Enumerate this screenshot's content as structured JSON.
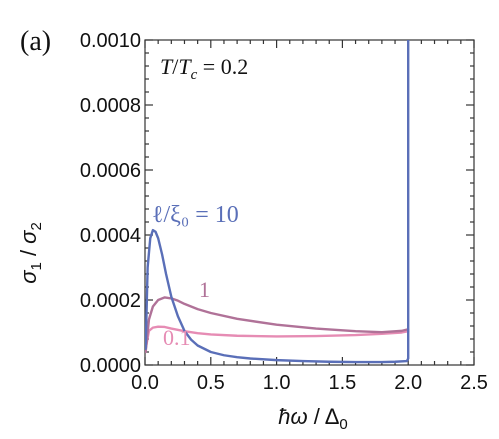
{
  "chart_data": {
    "type": "line",
    "panel_label": "(a)",
    "xlabel": "ħω / Δ₀",
    "ylabel": "σ₁ / σ₂",
    "xlim": [
      0.0,
      2.5
    ],
    "ylim": [
      0.0,
      0.001
    ],
    "x_ticks": [
      0.0,
      0.5,
      1.0,
      1.5,
      2.0,
      2.5
    ],
    "x_tick_labels": [
      "0.0",
      "0.5",
      "1.0",
      "1.5",
      "2.0",
      "2.5"
    ],
    "y_ticks": [
      0.0,
      0.0002,
      0.0004,
      0.0006,
      0.0008,
      0.001
    ],
    "y_tick_labels": [
      "0.0000",
      "0.0002",
      "0.0004",
      "0.0006",
      "0.0008",
      "0.0010"
    ],
    "annotation": "T/T_c = 0.2",
    "grid": false,
    "legend": "inline labels next to curves",
    "series": [
      {
        "name": "ℓ/ξ₀ = 10",
        "color": "#5a6fb8",
        "x": [
          0.005,
          0.02,
          0.04,
          0.06,
          0.08,
          0.1,
          0.13,
          0.16,
          0.2,
          0.25,
          0.3,
          0.35,
          0.4,
          0.5,
          0.6,
          0.7,
          0.8,
          1.0,
          1.2,
          1.4,
          1.6,
          1.8,
          1.9,
          1.99,
          2.0,
          2.0
        ],
        "y": [
          5e-05,
          0.0003,
          0.00039,
          0.000415,
          0.00041,
          0.00039,
          0.00034,
          0.00028,
          0.00021,
          0.00015,
          0.000105,
          7.8e-05,
          6e-05,
          4e-05,
          3e-05,
          2.4e-05,
          2e-05,
          1.5e-05,
          1.2e-05,
          1e-05,
          9e-06,
          9e-06,
          1e-05,
          1.2e-05,
          2e-05,
          0.001
        ]
      },
      {
        "name": "1",
        "color": "#b07298",
        "x": [
          0.005,
          0.03,
          0.06,
          0.1,
          0.15,
          0.2,
          0.25,
          0.3,
          0.4,
          0.5,
          0.7,
          1.0,
          1.3,
          1.6,
          1.8,
          1.95,
          2.0
        ],
        "y": [
          4e-05,
          0.00014,
          0.00018,
          0.0002,
          0.000208,
          0.000205,
          0.000198,
          0.000188,
          0.000172,
          0.00016,
          0.000142,
          0.000124,
          0.000112,
          0.000104,
          0.000101,
          0.000105,
          0.00011
        ]
      },
      {
        "name": "0.1",
        "color": "#e68cb4",
        "x": [
          0.005,
          0.03,
          0.06,
          0.1,
          0.15,
          0.2,
          0.3,
          0.4,
          0.5,
          0.7,
          1.0,
          1.3,
          1.6,
          1.8,
          1.95,
          2.0
        ],
        "y": [
          5e-05,
          0.000105,
          0.000115,
          0.000118,
          0.000117,
          0.000112,
          0.000104,
          9.8e-05,
          9.4e-05,
          9e-05,
          8.8e-05,
          8.9e-05,
          9.2e-05,
          9.6e-05,
          0.0001,
          0.000104
        ]
      }
    ]
  }
}
